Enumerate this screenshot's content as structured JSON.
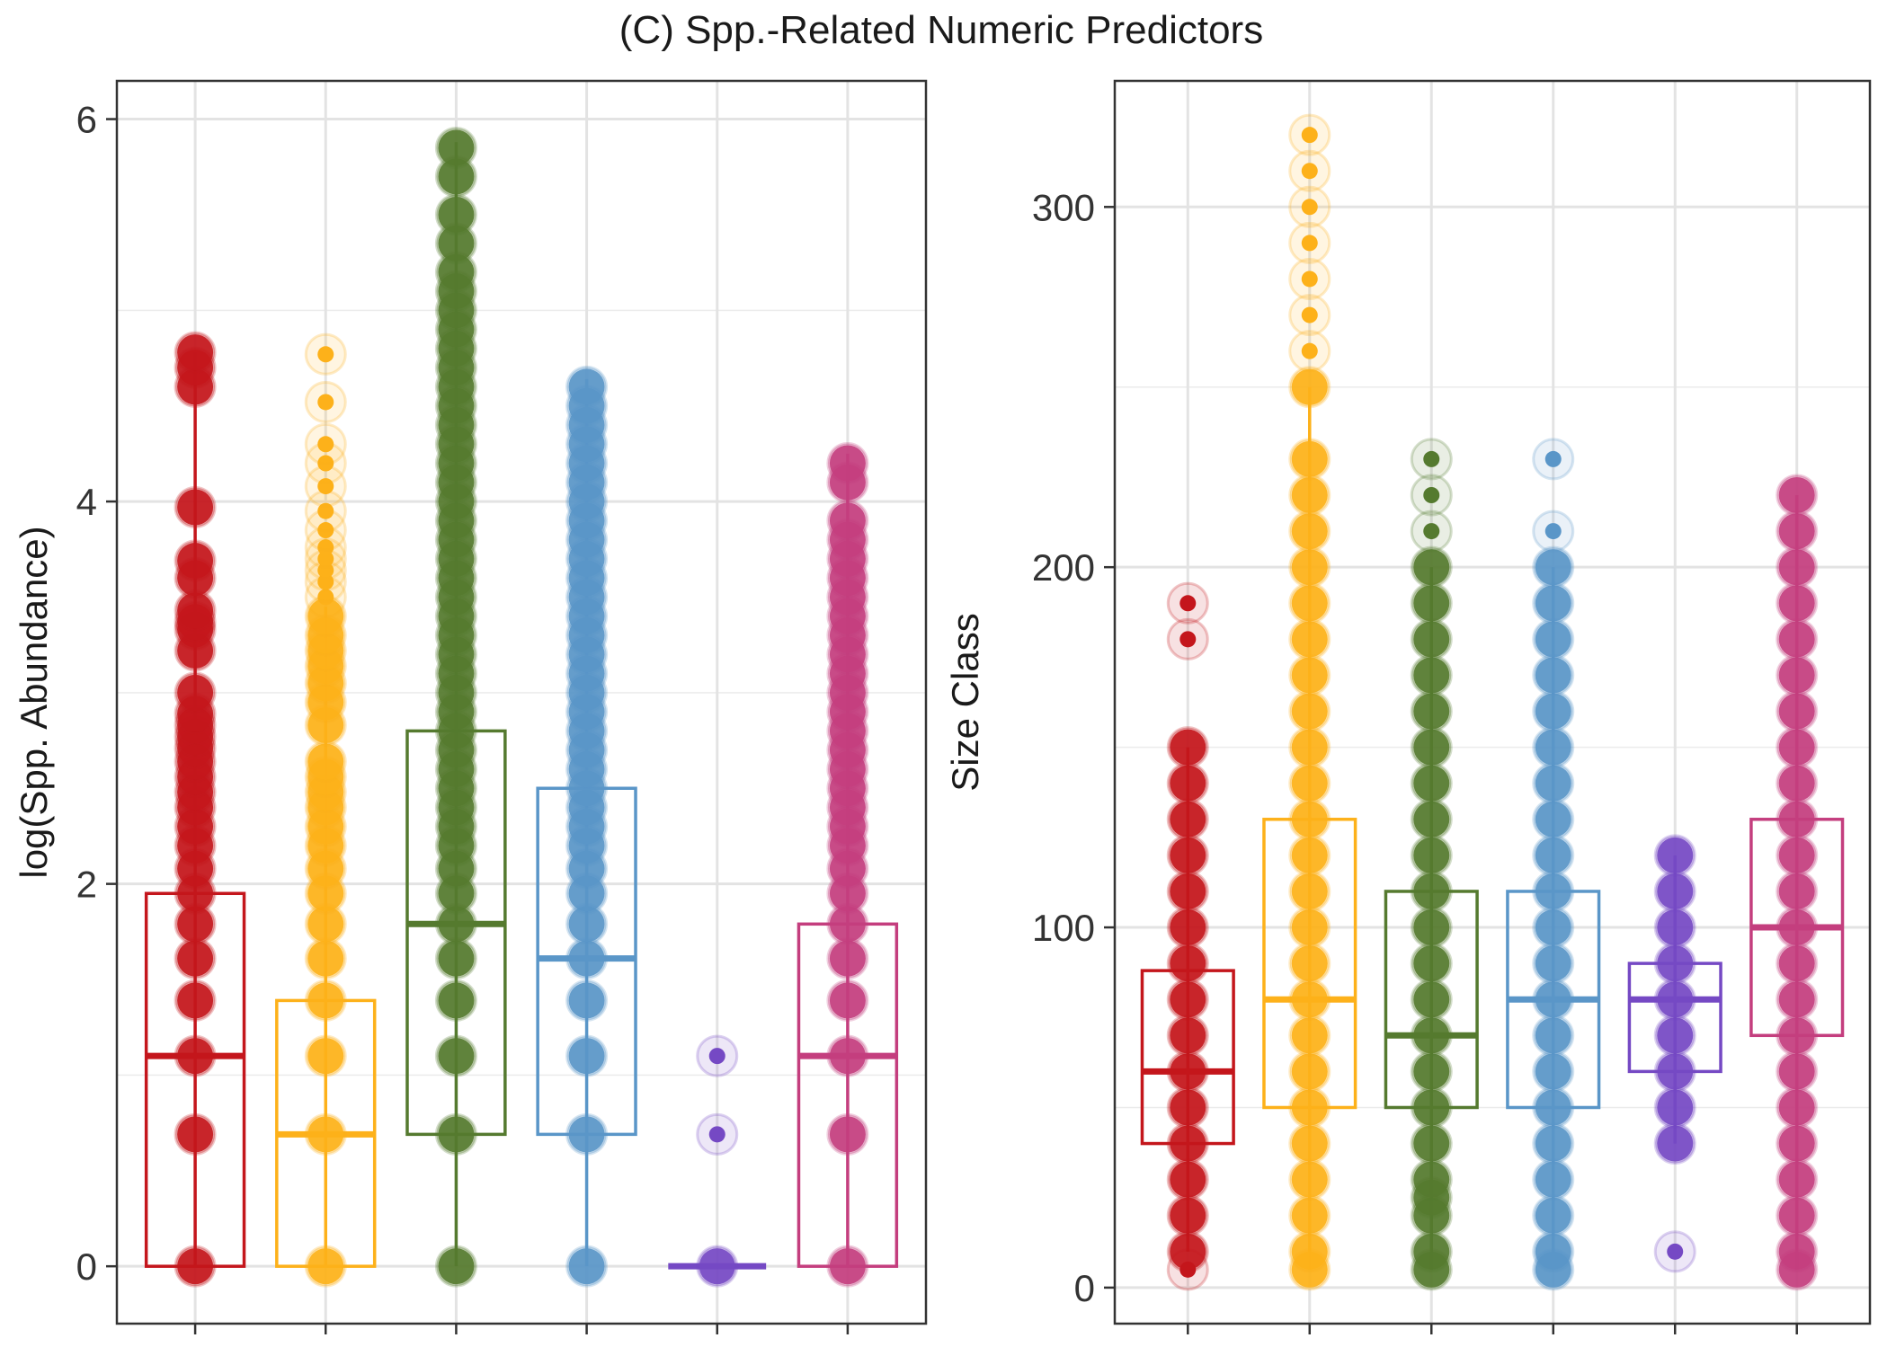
{
  "title": "(C) Spp.-Related Numeric Predictors",
  "chart_data": [
    {
      "type": "box",
      "title": "",
      "xlabel": "",
      "ylabel": "log(Spp. Abundance)",
      "ylim": [
        -0.3,
        6.2
      ],
      "yticks": [
        0,
        2,
        4,
        6
      ],
      "grid": true,
      "legend": "none",
      "series": [
        {
          "color": "#C4161C",
          "q1": 0,
          "median": 1.1,
          "q3": 1.95,
          "whisker_low": 0,
          "whisker_high": 4.78,
          "points": [
            0,
            0.69,
            1.1,
            1.39,
            1.61,
            1.79,
            1.95,
            2.08,
            2.2,
            2.3,
            2.4,
            2.48,
            2.56,
            2.64,
            2.71,
            2.77,
            2.83,
            2.89,
            3.0,
            3.22,
            3.33,
            3.37,
            3.43,
            3.6,
            3.69,
            3.97,
            4.6,
            4.7,
            4.78
          ]
        },
        {
          "color": "#FDB11A",
          "q1": 0,
          "median": 0.69,
          "q3": 1.39,
          "whisker_low": 0,
          "whisker_high": 3.45,
          "points": [
            0,
            0.69,
            1.1,
            1.39,
            1.61,
            1.79,
            1.95,
            2.08,
            2.2,
            2.3,
            2.4,
            2.48,
            2.56,
            2.64,
            2.83,
            2.95,
            3.05,
            3.14,
            3.22,
            3.3,
            3.4,
            3.5,
            3.58,
            3.64,
            3.7,
            3.76,
            3.85,
            3.95,
            4.08,
            4.2,
            4.3,
            4.52,
            4.77
          ]
        },
        {
          "color": "#557A2F",
          "q1": 0.69,
          "median": 1.79,
          "q3": 2.8,
          "whisker_low": 0,
          "whisker_high": 5.88,
          "points": [
            0,
            0.69,
            1.1,
            1.39,
            1.61,
            1.79,
            1.95,
            2.08,
            2.2,
            2.3,
            2.4,
            2.5,
            2.6,
            2.7,
            2.8,
            2.9,
            3.0,
            3.1,
            3.2,
            3.3,
            3.4,
            3.5,
            3.6,
            3.7,
            3.8,
            3.9,
            4.0,
            4.1,
            4.2,
            4.3,
            4.4,
            4.5,
            4.6,
            4.7,
            4.8,
            4.9,
            5.0,
            5.1,
            5.2,
            5.35,
            5.5,
            5.7,
            5.85
          ]
        },
        {
          "color": "#5A96C8",
          "q1": 0.69,
          "median": 1.61,
          "q3": 2.5,
          "whisker_low": 0,
          "whisker_high": 4.64,
          "points": [
            0,
            0.69,
            1.1,
            1.39,
            1.61,
            1.79,
            1.95,
            2.08,
            2.2,
            2.3,
            2.4,
            2.5,
            2.6,
            2.7,
            2.8,
            2.9,
            3.0,
            3.1,
            3.2,
            3.3,
            3.4,
            3.5,
            3.6,
            3.7,
            3.8,
            3.9,
            4.0,
            4.1,
            4.2,
            4.3,
            4.4,
            4.5,
            4.6
          ]
        },
        {
          "color": "#7549C4",
          "q1": 0,
          "median": 0,
          "q3": 0,
          "whisker_low": 0,
          "whisker_high": 0,
          "points": [
            0,
            0.69,
            1.1
          ]
        },
        {
          "color": "#C43E7E",
          "q1": 0,
          "median": 1.1,
          "q3": 1.79,
          "whisker_low": 0,
          "whisker_high": 4.25,
          "points": [
            0,
            0.69,
            1.1,
            1.39,
            1.61,
            1.79,
            1.95,
            2.08,
            2.2,
            2.3,
            2.4,
            2.5,
            2.6,
            2.7,
            2.8,
            2.9,
            3.0,
            3.1,
            3.2,
            3.3,
            3.4,
            3.5,
            3.6,
            3.7,
            3.8,
            3.9,
            4.1,
            4.2
          ]
        }
      ]
    },
    {
      "type": "box",
      "title": "",
      "xlabel": "",
      "ylabel": "Size Class",
      "ylim": [
        -10,
        335
      ],
      "yticks": [
        0,
        100,
        200,
        300
      ],
      "grid": true,
      "legend": "none",
      "series": [
        {
          "color": "#C4161C",
          "q1": 40,
          "median": 60,
          "q3": 88,
          "whisker_low": 10,
          "whisker_high": 150,
          "points": [
            5,
            10,
            20,
            30,
            40,
            50,
            60,
            70,
            80,
            90,
            100,
            110,
            120,
            130,
            140,
            150,
            180,
            190
          ]
        },
        {
          "color": "#FDB11A",
          "q1": 50,
          "median": 80,
          "q3": 130,
          "whisker_low": 5,
          "whisker_high": 250,
          "points": [
            5,
            10,
            20,
            30,
            40,
            50,
            60,
            70,
            80,
            90,
            100,
            110,
            120,
            130,
            140,
            150,
            160,
            170,
            180,
            190,
            200,
            210,
            220,
            230,
            250,
            260,
            270,
            280,
            290,
            300,
            310,
            320
          ]
        },
        {
          "color": "#557A2F",
          "q1": 50,
          "median": 70,
          "q3": 110,
          "whisker_low": 5,
          "whisker_high": 200,
          "points": [
            5,
            10,
            20,
            25,
            30,
            40,
            50,
            60,
            70,
            80,
            90,
            100,
            110,
            120,
            130,
            140,
            150,
            160,
            170,
            180,
            190,
            200,
            210,
            220,
            230
          ]
        },
        {
          "color": "#5A96C8",
          "q1": 50,
          "median": 80,
          "q3": 110,
          "whisker_low": 5,
          "whisker_high": 200,
          "points": [
            5,
            10,
            20,
            30,
            40,
            50,
            60,
            70,
            80,
            90,
            100,
            110,
            120,
            130,
            140,
            150,
            160,
            170,
            180,
            190,
            200,
            210,
            230
          ]
        },
        {
          "color": "#7549C4",
          "q1": 60,
          "median": 80,
          "q3": 90,
          "whisker_low": 40,
          "whisker_high": 120,
          "points": [
            10,
            40,
            50,
            60,
            70,
            80,
            90,
            100,
            110,
            120
          ]
        },
        {
          "color": "#C43E7E",
          "q1": 70,
          "median": 100,
          "q3": 130,
          "whisker_low": 5,
          "whisker_high": 220,
          "points": [
            5,
            10,
            20,
            30,
            40,
            50,
            60,
            70,
            80,
            90,
            100,
            110,
            120,
            130,
            140,
            150,
            160,
            170,
            180,
            190,
            200,
            210,
            220
          ]
        }
      ]
    }
  ]
}
